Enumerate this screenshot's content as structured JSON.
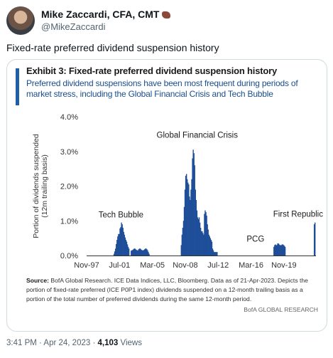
{
  "author": {
    "name": "Mike Zaccardi, CFA, CMT",
    "handle": "@MikeZaccardi",
    "badge_icon": "cigar-emoji-icon"
  },
  "tweet": {
    "text": "Fixed-rate preferred dividend suspension history"
  },
  "exhibit": {
    "title": "Exhibit 3: Fixed-rate preferred dividend suspension history",
    "subtitle": "Preferred dividend suspensions have been most frequent during periods of market stress, including the Global Financial Crisis and Tech Bubble",
    "source_label": "Source:",
    "source_text": "BofA Global Research. ICE Data Indices, LLC, Bloomberg. Data as of 21-Apr-2023. Depicts the portion of fixed-rate preferred (ICE P0P1 index) dividends suspended on a 12-month trailing basis as a portion of the total number of preferred dividends during the same 12-month period.",
    "watermark": "BofA GLOBAL RESEARCH"
  },
  "chart_data": {
    "type": "area",
    "ylabel": "Portion of dividends suspended (12m trailing basis)",
    "xlabel": "",
    "ylim": [
      0,
      4
    ],
    "y_ticks": [
      "0.0%",
      "1.0%",
      "2.0%",
      "3.0%",
      "4.0%"
    ],
    "x_ticks": [
      "Nov-97",
      "Jul-01",
      "Mar-05",
      "Nov-08",
      "Jul-12",
      "Mar-16",
      "Nov-19"
    ],
    "x_range": [
      "1997-11",
      "2023-04"
    ],
    "grid": false,
    "color": "#1f4e99",
    "annotations": [
      "Tech Bubble",
      "Global Financial Crisis",
      "PCG",
      "First Republic"
    ],
    "series": [
      {
        "x": [
          "2000-10",
          "2000-11",
          "2000-12",
          "2001-01",
          "2001-02",
          "2001-03",
          "2001-04",
          "2001-05",
          "2001-06",
          "2001-07",
          "2001-08",
          "2001-09",
          "2001-10",
          "2001-11",
          "2001-12",
          "2002-01",
          "2002-02",
          "2002-03",
          "2002-04",
          "2002-05",
          "2002-06",
          "2002-07",
          "2002-08",
          "2002-09",
          "2002-10",
          "2002-11",
          "2002-12",
          "2003-01",
          "2003-02",
          "2003-03",
          "2003-04",
          "2003-05",
          "2003-06",
          "2003-07",
          "2003-08",
          "2003-09",
          "2003-10",
          "2003-11",
          "2003-12",
          "2004-01",
          "2004-02",
          "2004-03",
          "2004-04",
          "2004-05",
          "2004-06",
          "2004-07",
          "2004-08",
          "2004-09",
          "2004-10",
          "2004-11",
          "2004-12",
          "2005-01",
          "2005-02",
          "2005-03",
          "2005-04",
          "2008-05",
          "2008-06",
          "2008-07",
          "2008-08",
          "2008-09",
          "2008-10",
          "2008-11",
          "2008-12",
          "2009-01",
          "2009-02",
          "2009-03",
          "2009-04",
          "2009-05",
          "2009-06",
          "2009-07",
          "2009-08",
          "2009-09",
          "2009-10",
          "2009-11",
          "2009-12",
          "2010-01",
          "2010-02",
          "2010-03",
          "2010-04",
          "2010-05",
          "2010-06",
          "2010-07",
          "2010-08",
          "2010-09",
          "2010-10",
          "2010-11",
          "2010-12",
          "2011-01",
          "2011-02",
          "2011-03",
          "2011-04",
          "2011-05",
          "2011-06",
          "2011-07",
          "2011-08",
          "2011-09",
          "2011-10",
          "2011-11",
          "2011-12",
          "2012-01",
          "2012-02",
          "2012-03",
          "2012-04",
          "2012-05",
          "2012-06",
          "2018-09",
          "2018-10",
          "2018-11",
          "2018-12",
          "2019-01",
          "2019-02",
          "2019-03",
          "2019-04",
          "2019-05",
          "2019-06",
          "2019-07",
          "2019-08",
          "2019-09",
          "2019-10",
          "2019-11",
          "2019-12",
          "2020-01",
          "2023-02",
          "2023-03",
          "2023-04"
        ],
        "values": [
          0,
          0.05,
          0.12,
          0.2,
          0.33,
          0.45,
          0.55,
          0.62,
          0.62,
          0.78,
          0.82,
          0.95,
          0.9,
          0.8,
          0.68,
          0.6,
          0.52,
          0.45,
          0.4,
          0.32,
          0.25,
          0.2,
          0,
          0,
          0.14,
          0.15,
          0.16,
          0.18,
          0.2,
          0.2,
          0.18,
          0.16,
          0.15,
          0.15,
          0.18,
          0.2,
          0.2,
          0.18,
          0.16,
          0.15,
          0.15,
          0.16,
          0.18,
          0.2,
          0.2,
          0.18,
          0.15,
          0.1,
          0.05,
          0,
          0,
          0,
          0,
          0,
          0,
          0.3,
          0.6,
          0.8,
          1.0,
          1.4,
          1.9,
          2.3,
          2.35,
          2.2,
          2.1,
          2.05,
          1.7,
          1.6,
          1.9,
          2.2,
          2.8,
          3.05,
          2.95,
          2.6,
          1.9,
          1.6,
          1.3,
          1.1,
          1.05,
          1.1,
          0.95,
          0.8,
          0.7,
          0.7,
          0.65,
          0.6,
          1.2,
          1.3,
          1.25,
          1.15,
          0.9,
          0.75,
          0.6,
          0.55,
          0.5,
          0.45,
          0.4,
          0.2,
          0.15,
          0.1,
          0.1,
          0.1,
          0.1,
          0.1,
          0,
          0.25,
          0.3,
          0.32,
          0.3,
          0.3,
          0.35,
          0.35,
          0.32,
          0.3,
          0.3,
          0.3,
          0.32,
          0.32,
          0.3,
          0.28,
          0.25,
          0,
          0,
          0.9,
          0.95
        ]
      }
    ]
  },
  "meta": {
    "time": "3:41 PM · Apr 24, 2023 · ",
    "views_count": "4,103",
    "views_label": " Views"
  }
}
